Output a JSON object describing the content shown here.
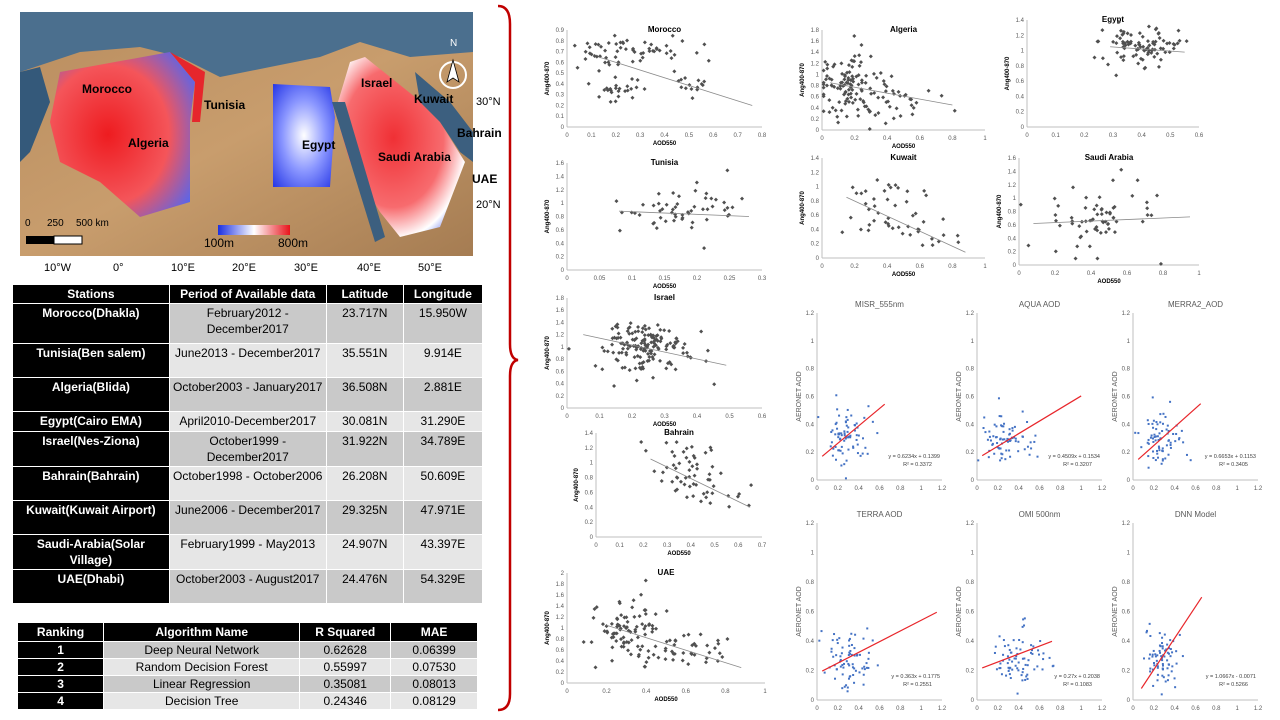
{
  "map": {
    "country_labels": [
      {
        "name": "Morocco",
        "x": 62,
        "y": 70
      },
      {
        "name": "Algeria",
        "x": 108,
        "y": 124
      },
      {
        "name": "Tunisia",
        "x": 184,
        "y": 86
      },
      {
        "name": "Egypt",
        "x": 282,
        "y": 126
      },
      {
        "name": "Israel",
        "x": 341,
        "y": 64
      },
      {
        "name": "Saudi Arabia",
        "x": 358,
        "y": 138
      },
      {
        "name": "Kuwait",
        "x": 394,
        "y": 80
      },
      {
        "name": "Bahrain",
        "x": 437,
        "y": 114
      },
      {
        "name": "UAE",
        "x": 452,
        "y": 160
      }
    ],
    "scalebar": {
      "zero": "0",
      "mid": "250",
      "end": "500 km"
    },
    "colorbar": {
      "min": "100m",
      "max": "800m"
    },
    "north": "N",
    "lon_ticks": [
      "10°W",
      "0°",
      "10°E",
      "20°E",
      "30°E",
      "40°E",
      "50°E"
    ],
    "lat_ticks": [
      "30°N",
      "20°N"
    ]
  },
  "stations_table": {
    "headers": [
      "Stations",
      "Period of Available  data",
      "Latitude",
      "Longitude"
    ],
    "rows": [
      {
        "station": "Morocco(Dhakla)",
        "period": "February2012 - December2017",
        "lat": "23.717N",
        "lon": "15.950W"
      },
      {
        "station": "Tunisia(Ben  salem)",
        "period": "June2013 - December2017",
        "lat": "35.551N",
        "lon": "9.914E"
      },
      {
        "station": "Algeria(Blida)",
        "period": "October2003 - January2017",
        "lat": "36.508N",
        "lon": "2.881E"
      },
      {
        "station": "Egypt(Cairo  EMA)",
        "period": "April2010-December2017",
        "lat": "30.081N",
        "lon": "31.290E"
      },
      {
        "station": "Israel(Nes-Ziona)",
        "period": "October1999 - December2017",
        "lat": "31.922N",
        "lon": "34.789E"
      },
      {
        "station": "Bahrain(Bahrain)",
        "period": "October1998 - October2006",
        "lat": "26.208N",
        "lon": "50.609E"
      },
      {
        "station": "Kuwait(Kuwait  Airport)",
        "period": "June2006 - December2017",
        "lat": "29.325N",
        "lon": "47.971E"
      },
      {
        "station": "Saudi-Arabia(Solar Village)",
        "period": "February1999 - May2013",
        "lat": "24.907N",
        "lon": "43.397E"
      },
      {
        "station": "UAE(Dhabi)",
        "period": "October2003 - August2017",
        "lat": "24.476N",
        "lon": "54.329E"
      }
    ]
  },
  "ranking_table": {
    "headers": [
      "Ranking",
      "Algorithm Name",
      "R Squared",
      "MAE"
    ],
    "rows": [
      {
        "rank": "1",
        "name": "Deep Neural Network",
        "r2": "0.62628",
        "mae": "0.06399"
      },
      {
        "rank": "2",
        "name": "Random Decision Forest",
        "r2": "0.55997",
        "mae": "0.07530"
      },
      {
        "rank": "3",
        "name": "Linear Regression",
        "r2": "0.35081",
        "mae": "0.08013"
      },
      {
        "rank": "4",
        "name": "Decision Tree",
        "r2": "0.24346",
        "mae": "0.08129"
      }
    ]
  },
  "colors": {
    "points_gray": "#505050",
    "trend_gray": "#8a8a8a",
    "points_blue": "#4472c4",
    "trend_red": "#e8262b",
    "brace_red": "#c00000"
  },
  "chart_data": [
    {
      "type": "scatter",
      "title": "Morocco",
      "xlabel": "AOD550",
      "ylabel": "Ang400-870",
      "xlim": [
        0,
        0.8
      ],
      "ylim": [
        0,
        0.9
      ],
      "xticks": [
        0,
        0.1,
        0.2,
        0.3,
        0.4,
        0.5,
        0.6,
        0.7,
        0.8
      ],
      "yticks": [
        0,
        0.1,
        0.2,
        0.3,
        0.4,
        0.5,
        0.6,
        0.7,
        0.8,
        0.9
      ],
      "trend": [
        [
          0.13,
          0.65
        ],
        [
          0.76,
          0.2
        ]
      ],
      "cluster": [
        [
          0.15,
          0.7,
          0.06,
          0.12,
          30
        ],
        [
          0.2,
          0.35,
          0.05,
          0.06,
          25
        ],
        [
          0.35,
          0.72,
          0.08,
          0.07,
          30
        ],
        [
          0.5,
          0.38,
          0.06,
          0.06,
          15
        ]
      ],
      "seed": 11
    },
    {
      "type": "scatter",
      "title": "Algeria",
      "xlabel": "AOD550",
      "ylabel": "Ang400-870",
      "xlim": [
        0,
        1
      ],
      "ylim": [
        0,
        1.8
      ],
      "xticks": [
        0,
        0.2,
        0.4,
        0.6,
        0.8,
        1
      ],
      "yticks": [
        0,
        0.2,
        0.4,
        0.6,
        0.8,
        1,
        1.2,
        1.4,
        1.6,
        1.8
      ],
      "trend": [
        [
          0.05,
          0.85
        ],
        [
          0.8,
          0.45
        ]
      ],
      "cluster": [
        [
          0.15,
          0.8,
          0.08,
          0.35,
          90
        ],
        [
          0.35,
          0.6,
          0.1,
          0.3,
          40
        ],
        [
          0.6,
          0.4,
          0.1,
          0.2,
          8
        ]
      ],
      "seed": 22
    },
    {
      "type": "scatter",
      "title": "Egypt",
      "xlabel": "",
      "ylabel": "Ang400-870",
      "xlim": [
        0,
        0.6
      ],
      "ylim": [
        0,
        1.4
      ],
      "xticks": [
        0,
        0.1,
        0.2,
        0.3,
        0.4,
        0.5,
        0.6
      ],
      "yticks": [
        0,
        0.2,
        0.4,
        0.6,
        0.8,
        1,
        1.2,
        1.4
      ],
      "trend": [
        [
          0.29,
          1.05
        ],
        [
          0.55,
          0.98
        ]
      ],
      "cluster": [
        [
          0.38,
          1.05,
          0.06,
          0.13,
          80
        ],
        [
          0.5,
          1.1,
          0.03,
          0.12,
          12
        ]
      ],
      "seed": 33
    },
    {
      "type": "scatter",
      "title": "Tunisia",
      "xlabel": "AOD550",
      "ylabel": "Ang400-870",
      "xlim": [
        0,
        0.3
      ],
      "ylim": [
        0,
        1.6
      ],
      "xticks": [
        0,
        0.05,
        0.1,
        0.15,
        0.2,
        0.25,
        0.3
      ],
      "yticks": [
        0,
        0.2,
        0.4,
        0.6,
        0.8,
        1,
        1.2,
        1.4,
        1.6
      ],
      "trend": [
        [
          0.08,
          0.88
        ],
        [
          0.28,
          0.8
        ]
      ],
      "cluster": [
        [
          0.18,
          0.88,
          0.05,
          0.18,
          55
        ]
      ],
      "seed": 44
    },
    {
      "type": "scatter",
      "title": "Kuwait",
      "xlabel": "AOD550",
      "ylabel": "Ang400-870",
      "xlim": [
        0,
        1
      ],
      "ylim": [
        0,
        1.4
      ],
      "xticks": [
        0,
        0.2,
        0.4,
        0.6,
        0.8,
        1
      ],
      "yticks": [
        0,
        0.2,
        0.4,
        0.6,
        0.8,
        1,
        1.2,
        1.4
      ],
      "trend": [
        [
          0.15,
          0.85
        ],
        [
          0.88,
          0.08
        ]
      ],
      "cluster": [
        [
          0.35,
          0.7,
          0.12,
          0.22,
          35
        ],
        [
          0.65,
          0.3,
          0.1,
          0.1,
          15
        ]
      ],
      "seed": 55
    },
    {
      "type": "scatter",
      "title": "Saudi Arabia",
      "xlabel": "AOD550",
      "ylabel": "Ang400-870",
      "xlim": [
        0,
        1
      ],
      "ylim": [
        0,
        1.6
      ],
      "xticks": [
        0,
        0.2,
        0.4,
        0.6,
        0.8,
        1
      ],
      "yticks": [
        0,
        0.2,
        0.4,
        0.6,
        0.8,
        1,
        1.2,
        1.4,
        1.6
      ],
      "trend": [
        [
          0.08,
          0.62
        ],
        [
          0.95,
          0.72
        ]
      ],
      "cluster": [
        [
          0.45,
          0.65,
          0.17,
          0.28,
          65
        ]
      ],
      "seed": 66
    },
    {
      "type": "scatter",
      "title": "Israel",
      "xlabel": "AOD550",
      "ylabel": "Ang400-870",
      "xlim": [
        0,
        0.6
      ],
      "ylim": [
        0,
        1.8
      ],
      "xticks": [
        0,
        0.1,
        0.2,
        0.3,
        0.4,
        0.5,
        0.6
      ],
      "yticks": [
        0,
        0.2,
        0.4,
        0.6,
        0.8,
        1,
        1.2,
        1.4,
        1.6,
        1.8
      ],
      "trend": [
        [
          0.05,
          1.2
        ],
        [
          0.49,
          0.7
        ]
      ],
      "cluster": [
        [
          0.22,
          1.0,
          0.06,
          0.22,
          140
        ],
        [
          0.35,
          0.8,
          0.05,
          0.2,
          15
        ]
      ],
      "seed": 77
    },
    {
      "type": "scatter",
      "title": "Bahrain",
      "xlabel": "AOD550",
      "ylabel": "Ang400-870",
      "xlim": [
        0,
        0.7
      ],
      "ylim": [
        0,
        1.4
      ],
      "xticks": [
        0,
        0.1,
        0.2,
        0.3,
        0.4,
        0.5,
        0.6,
        0.7
      ],
      "yticks": [
        0,
        0.2,
        0.4,
        0.6,
        0.8,
        1,
        1.2,
        1.4
      ],
      "trend": [
        [
          0.23,
          1.05
        ],
        [
          0.65,
          0.4
        ]
      ],
      "cluster": [
        [
          0.35,
          0.9,
          0.07,
          0.18,
          40
        ],
        [
          0.5,
          0.6,
          0.07,
          0.15,
          20
        ]
      ],
      "seed": 88
    },
    {
      "type": "scatter",
      "title": "UAE",
      "xlabel": "AOD550",
      "ylabel": "Ang400-870",
      "xlim": [
        0,
        1
      ],
      "ylim": [
        0,
        2
      ],
      "xticks": [
        0,
        0.2,
        0.4,
        0.6,
        0.8,
        1
      ],
      "yticks": [
        0,
        0.2,
        0.4,
        0.6,
        0.8,
        1,
        1.2,
        1.4,
        1.6,
        1.8,
        2
      ],
      "trend": [
        [
          0.2,
          1.05
        ],
        [
          0.88,
          0.28
        ]
      ],
      "cluster": [
        [
          0.3,
          1.0,
          0.08,
          0.25,
          80
        ],
        [
          0.6,
          0.55,
          0.12,
          0.15,
          45
        ]
      ],
      "seed": 99
    },
    {
      "type": "scatter",
      "title": "MISR_555nm",
      "xlabel": "",
      "ylabel": "AERONET AOD",
      "xlim": [
        0,
        1.2
      ],
      "ylim": [
        0,
        1.2
      ],
      "xticks": [
        0,
        0.2,
        0.4,
        0.6,
        0.8,
        1,
        1.2
      ],
      "yticks": [
        0,
        0.2,
        0.4,
        0.6,
        0.8,
        1,
        1.2
      ],
      "trend": [
        [
          0.05,
          0.17
        ],
        [
          0.65,
          0.545
        ]
      ],
      "equation": "y = 0.6234x + 0.1399",
      "r2": "R² = 0.3372",
      "cluster": [
        [
          0.28,
          0.3,
          0.1,
          0.1,
          75
        ]
      ],
      "seed": 101
    },
    {
      "type": "scatter",
      "title": "AQUA AOD",
      "xlabel": "",
      "ylabel": "AERONET AOD",
      "xlim": [
        0,
        1.2
      ],
      "ylim": [
        0,
        1.2
      ],
      "xticks": [
        0,
        0.2,
        0.4,
        0.6,
        0.8,
        1,
        1.2
      ],
      "yticks": [
        0,
        0.2,
        0.4,
        0.6,
        0.8,
        1,
        1.2
      ],
      "trend": [
        [
          0.05,
          0.175
        ],
        [
          1.0,
          0.604
        ]
      ],
      "equation": "y = 0.4509x + 0.1534",
      "r2": "R² = 0.3207",
      "cluster": [
        [
          0.3,
          0.28,
          0.12,
          0.1,
          75
        ]
      ],
      "seed": 102
    },
    {
      "type": "scatter",
      "title": "MERRA2_AOD",
      "xlabel": "",
      "ylabel": "AERONET AOD",
      "xlim": [
        0,
        1.2
      ],
      "ylim": [
        0,
        1.2
      ],
      "xticks": [
        0,
        0.2,
        0.4,
        0.6,
        0.8,
        1,
        1.2
      ],
      "yticks": [
        0,
        0.2,
        0.4,
        0.6,
        0.8,
        1,
        1.2
      ],
      "trend": [
        [
          0.05,
          0.148
        ],
        [
          0.65,
          0.548
        ]
      ],
      "equation": "y = 0.6653x + 0.1153",
      "r2": "R² = 0.3405",
      "cluster": [
        [
          0.28,
          0.3,
          0.1,
          0.1,
          75
        ]
      ],
      "seed": 103
    },
    {
      "type": "scatter",
      "title": "TERRA AOD",
      "xlabel": "",
      "ylabel": "AERONET AOD",
      "xlim": [
        0,
        1.2
      ],
      "ylim": [
        0,
        1.2
      ],
      "xticks": [
        0,
        0.2,
        0.4,
        0.6,
        0.8,
        1,
        1.2
      ],
      "yticks": [
        0,
        0.2,
        0.4,
        0.6,
        0.8,
        1,
        1.2
      ],
      "trend": [
        [
          0.05,
          0.196
        ],
        [
          1.15,
          0.595
        ]
      ],
      "equation": "y = 0.363x + 0.1775",
      "r2": "R² = 0.2551",
      "cluster": [
        [
          0.3,
          0.28,
          0.12,
          0.1,
          75
        ]
      ],
      "seed": 104
    },
    {
      "type": "scatter",
      "title": "OMI 500nm",
      "xlabel": "",
      "ylabel": "AERONET AOD",
      "xlim": [
        0,
        1.2
      ],
      "ylim": [
        0,
        1.2
      ],
      "xticks": [
        0,
        0.2,
        0.4,
        0.6,
        0.8,
        1,
        1.2
      ],
      "yticks": [
        0,
        0.2,
        0.4,
        0.6,
        0.8,
        1,
        1.2
      ],
      "trend": [
        [
          0.05,
          0.217
        ],
        [
          0.72,
          0.398
        ]
      ],
      "equation": "y = 0.27x + 0.2038",
      "r2": "R² = 0.1083",
      "cluster": [
        [
          0.38,
          0.3,
          0.14,
          0.1,
          75
        ]
      ],
      "seed": 105
    },
    {
      "type": "scatter",
      "title": "DNN Model",
      "xlabel": "",
      "ylabel": "AERONET AOD",
      "xlim": [
        0,
        1.2
      ],
      "ylim": [
        0,
        1.2
      ],
      "xticks": [
        0,
        0.2,
        0.4,
        0.6,
        0.8,
        1,
        1.2
      ],
      "yticks": [
        0,
        0.2,
        0.4,
        0.6,
        0.8,
        1,
        1.2
      ],
      "trend": [
        [
          0.08,
          0.078
        ],
        [
          0.66,
          0.697
        ]
      ],
      "equation": "y = 1.0667x - 0.0071",
      "r2": "R² = 0.5266",
      "cluster": [
        [
          0.28,
          0.28,
          0.08,
          0.1,
          75
        ]
      ],
      "seed": 106
    }
  ]
}
